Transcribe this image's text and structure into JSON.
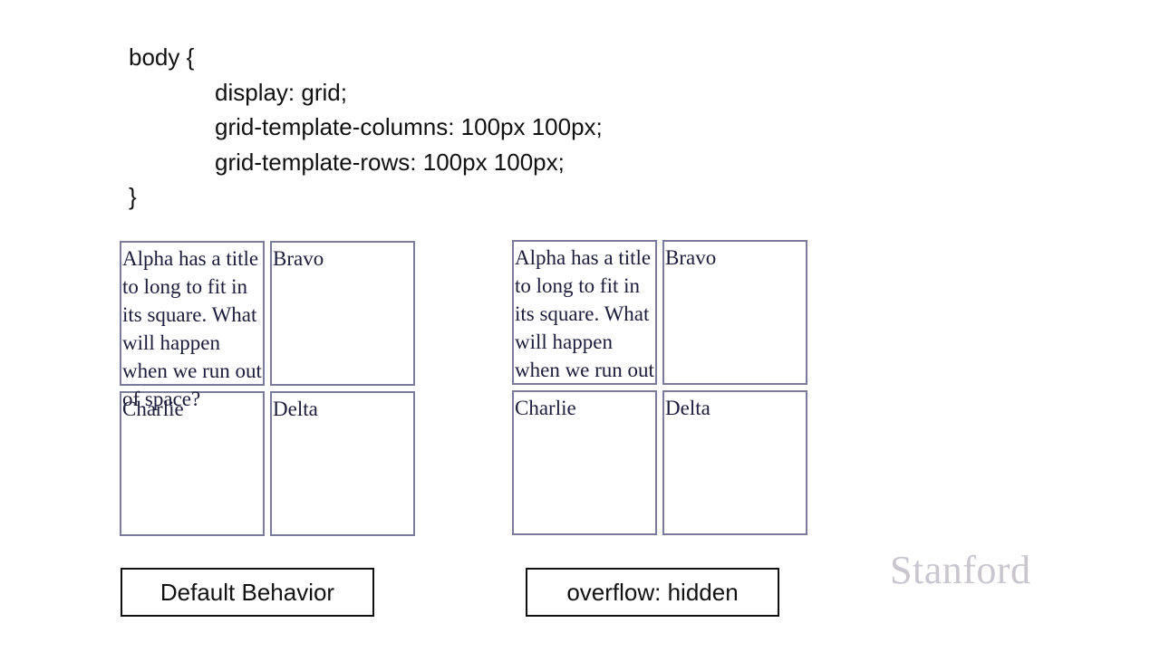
{
  "code": {
    "line1": "body {",
    "line2": "display: grid;",
    "line3": "grid-template-columns: 100px 100px;",
    "line4": "grid-template-rows: 100px 100px;",
    "line5": "}"
  },
  "demo_default": {
    "alpha": "Alpha has a title to long to fit in its square. What will happen when we run out of space?",
    "bravo": "Bravo",
    "charlie": "Charlie",
    "delta": "Delta",
    "caption": "Default Behavior"
  },
  "demo_hidden": {
    "alpha": "Alpha has a title to long to fit in its square. What will happen when we run out of space?",
    "bravo": "Bravo",
    "charlie": "Charlie",
    "delta": "Delta",
    "caption": "overflow: hidden"
  },
  "logo": "Stanford"
}
